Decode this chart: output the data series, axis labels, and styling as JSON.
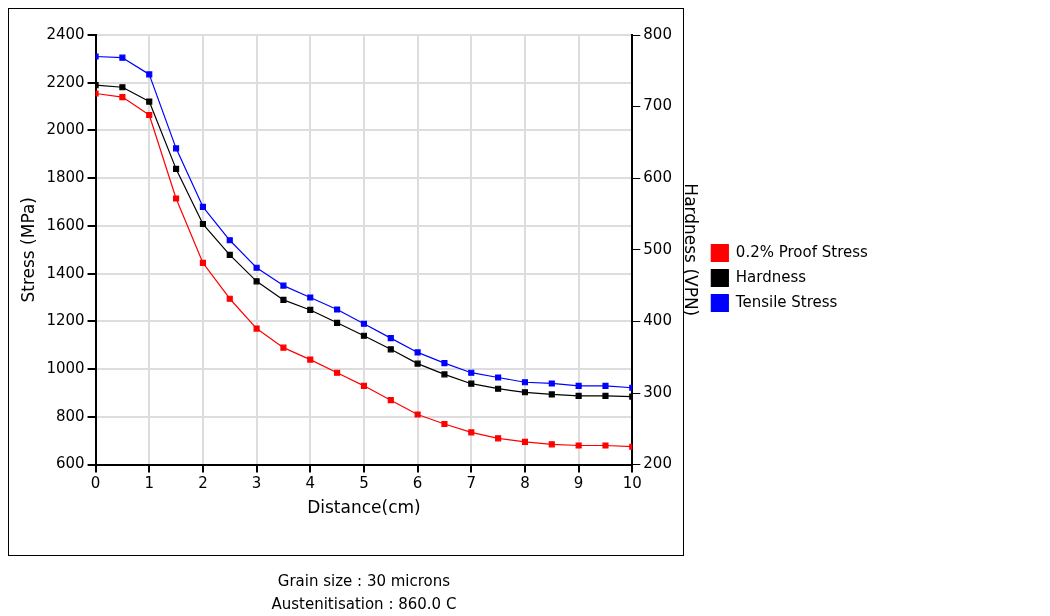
{
  "chart_data": {
    "type": "line",
    "xlabel": "Distance(cm)",
    "ylabel": "Stress (MPa)",
    "y2label": "Hardness (VPN)",
    "x": [
      0,
      0.5,
      1,
      1.5,
      2,
      2.5,
      3,
      3.5,
      4,
      4.5,
      5,
      5.5,
      6,
      6.5,
      7,
      7.5,
      8,
      8.5,
      9,
      9.5,
      10
    ],
    "series": [
      {
        "name": "0.2% Proof Stress",
        "color": "#ff0000",
        "values": [
          2155,
          2140,
          2065,
          1715,
          1445,
          1295,
          1170,
          1090,
          1040,
          985,
          930,
          870,
          810,
          770,
          735,
          710,
          695,
          685,
          680,
          680,
          675
        ]
      },
      {
        "name": "Hardness",
        "color": "#000000",
        "axis": "y2",
        "values": [
          730,
          727,
          707,
          613,
          536,
          493,
          456,
          430,
          416,
          398,
          380,
          361,
          341,
          326,
          313,
          306,
          301,
          298,
          296,
          296,
          295
        ]
      },
      {
        "name": "Tensile Stress",
        "color": "#0000ff",
        "values": [
          2310,
          2305,
          2235,
          1925,
          1680,
          1540,
          1425,
          1350,
          1300,
          1250,
          1190,
          1130,
          1070,
          1025,
          985,
          965,
          945,
          940,
          930,
          930,
          922
        ]
      }
    ],
    "xlim": [
      0,
      10
    ],
    "xticks": [
      0,
      1,
      2,
      3,
      4,
      5,
      6,
      7,
      8,
      9,
      10
    ],
    "ylim": [
      600,
      2400
    ],
    "yticks": [
      600,
      800,
      1000,
      1200,
      1400,
      1600,
      1800,
      2000,
      2200,
      2400
    ],
    "y2lim": [
      200,
      800
    ],
    "y2ticks": [
      200,
      300,
      400,
      500,
      600,
      700,
      800
    ],
    "grid": true,
    "legend": "right",
    "marker": "square",
    "line_style": "solid",
    "annotations": [
      "Grain size : 30 microns",
      "Austenitisation : 860.0 C"
    ]
  }
}
